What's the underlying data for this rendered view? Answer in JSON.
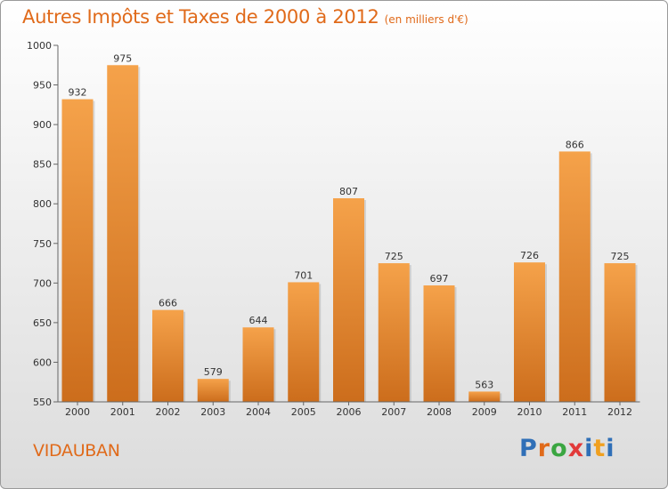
{
  "title": "Autres Impôts et Taxes de 2000 à 2012",
  "subtitle": "(en milliers d'€)",
  "commune": "VIDAUBAN",
  "brand": {
    "letters": [
      "P",
      "r",
      "o",
      "x",
      "i",
      "t",
      "i"
    ],
    "colors": [
      "#2f6fb7",
      "#e06a1a",
      "#3aa641",
      "#e23a3a",
      "#2f6fb7",
      "#f0a020",
      "#2f6fb7"
    ]
  },
  "colors": {
    "bar_light": "#f5a24a",
    "bar_dark": "#cc6d1c",
    "title": "#e06a1a"
  },
  "chart_data": {
    "type": "bar",
    "title": "Autres Impôts et Taxes de 2000 à 2012",
    "subtitle": "(en milliers d'€)",
    "categories": [
      "2000",
      "2001",
      "2002",
      "2003",
      "2004",
      "2005",
      "2006",
      "2007",
      "2008",
      "2009",
      "2010",
      "2011",
      "2012"
    ],
    "values": [
      932,
      975,
      666,
      579,
      644,
      701,
      807,
      725,
      697,
      563,
      726,
      866,
      725
    ],
    "ylim": [
      550,
      1000
    ],
    "yticks": [
      550,
      600,
      650,
      700,
      750,
      800,
      850,
      900,
      950,
      1000
    ],
    "grid": false,
    "data_labels": true
  }
}
